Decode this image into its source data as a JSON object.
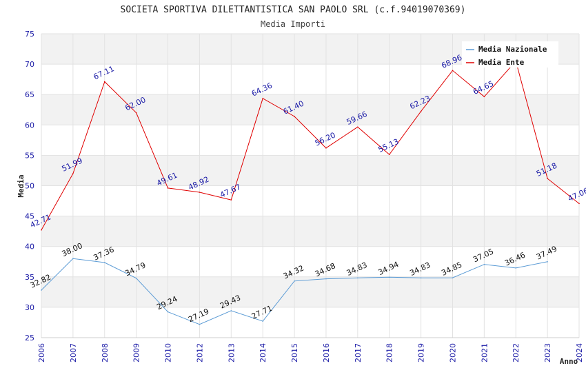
{
  "chart_data": {
    "type": "line",
    "title": "SOCIETA SPORTIVA DILETTANTISTICA SAN PAOLO SRL (c.f.94019070369)",
    "subtitle": "Media Importi",
    "xlabel": "Anno",
    "ylabel": "Media",
    "ylim": [
      25,
      75
    ],
    "yticks": [
      "25",
      "30",
      "35",
      "40",
      "45",
      "50",
      "55",
      "60",
      "65",
      "70",
      "75"
    ],
    "categories": [
      "2006",
      "2007",
      "2008",
      "2009",
      "2010",
      "2012",
      "2013",
      "2014",
      "2015",
      "2016",
      "2017",
      "2018",
      "2019",
      "2020",
      "2021",
      "2022",
      "2023",
      "2024"
    ],
    "legend_position": "top-right",
    "series": [
      {
        "name": "Media Nazionale",
        "color": "#5b9bd5",
        "values": [
          32.82,
          38.0,
          37.36,
          34.79,
          29.24,
          27.19,
          29.43,
          27.71,
          34.32,
          34.68,
          34.83,
          34.94,
          34.83,
          34.85,
          37.05,
          36.46,
          37.49,
          null
        ],
        "labels": [
          "32.82",
          "38.00",
          "37.36",
          "34.79",
          "29.24",
          "27.19",
          "29.43",
          "27.71",
          "34.32",
          "34.68",
          "34.83",
          "34.94",
          "34.83",
          "34.85",
          "37.05",
          "36.46",
          "37.49",
          null
        ]
      },
      {
        "name": "Media Ente",
        "color": "#e00000",
        "values": [
          42.71,
          51.99,
          67.11,
          62.0,
          49.61,
          48.92,
          47.67,
          64.36,
          61.4,
          56.2,
          59.66,
          55.13,
          62.23,
          68.96,
          64.65,
          70.5,
          51.18,
          47.06
        ],
        "labels": [
          "42.71",
          "51.99",
          "67.11",
          "62.00",
          "49.61",
          "48.92",
          "47.67",
          "64.36",
          "61.40",
          "56.20",
          "59.66",
          "55.13",
          "62.23",
          "68.96",
          "64.65",
          null,
          "51.18",
          "47.06"
        ]
      }
    ]
  }
}
